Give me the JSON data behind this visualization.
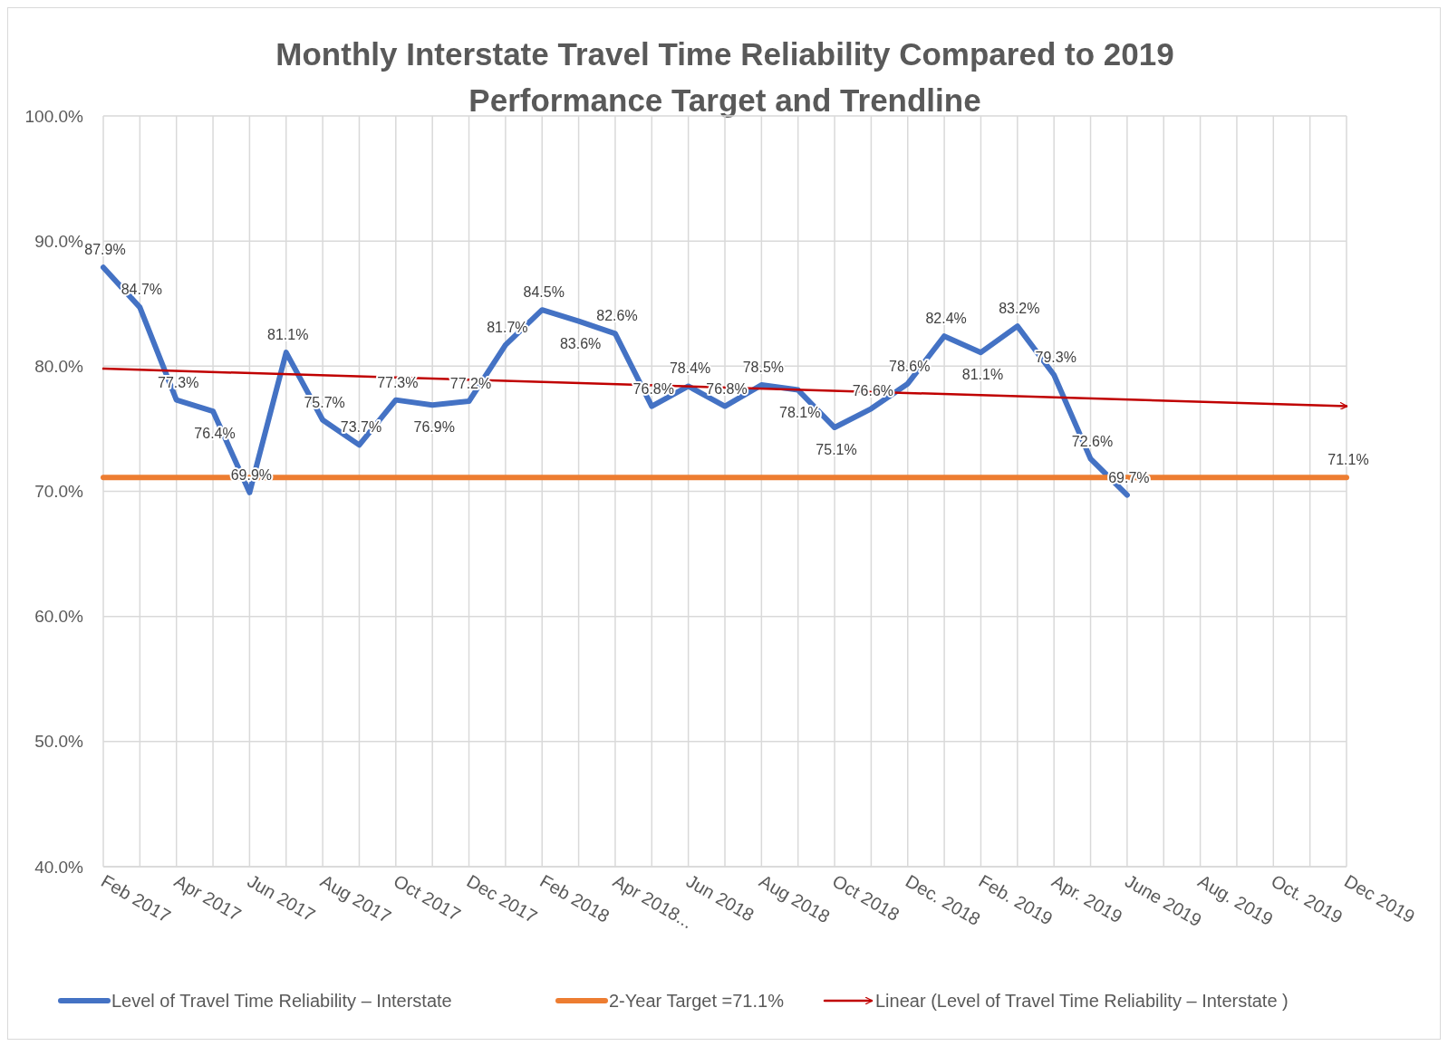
{
  "chart_data": {
    "type": "line",
    "title": "Monthly Interstate Travel Time Reliability Compared to 2019 Performance Target and Trendline",
    "categories": [
      "Feb 2017",
      null,
      "Apr 2017",
      null,
      "Jun 2017",
      null,
      "Aug 2017",
      null,
      "Oct 2017",
      null,
      "Dec 2017",
      null,
      "Feb 2018",
      null,
      "Apr 2018...",
      null,
      "Jun 2018",
      null,
      "Aug 2018",
      null,
      "Oct 2018",
      null,
      "Dec. 2018",
      null,
      "Feb. 2019",
      null,
      "Apr. 2019",
      null,
      "June 2019",
      null,
      "Aug. 2019",
      null,
      "Oct. 2019",
      null,
      "Dec 2019"
    ],
    "ylim": [
      40,
      100
    ],
    "yticks": [
      {
        "value": 40,
        "label": "40.0%"
      },
      {
        "value": 50,
        "label": "50.0%"
      },
      {
        "value": 60,
        "label": "60.0%"
      },
      {
        "value": 70,
        "label": "70.0%"
      },
      {
        "value": 80,
        "label": "80.0%"
      },
      {
        "value": 90,
        "label": "90.0%"
      },
      {
        "value": 100,
        "label": "100.0%"
      }
    ],
    "grid": true,
    "legend": "bottom",
    "series": [
      {
        "name": "Level of Travel Time Reliability – Interstate",
        "color": "#4472c4",
        "values": [
          87.9,
          84.7,
          77.3,
          76.4,
          69.9,
          81.1,
          75.7,
          73.7,
          77.3,
          76.9,
          77.2,
          81.7,
          84.5,
          83.6,
          82.6,
          76.8,
          78.4,
          76.8,
          78.5,
          78.1,
          75.1,
          76.6,
          78.6,
          82.4,
          81.1,
          83.2,
          79.3,
          72.6,
          69.7,
          null,
          null,
          null,
          null,
          null,
          null
        ],
        "value_labels": [
          "87.9%",
          "84.7%",
          "77.3%",
          "76.4%",
          "69.9%",
          "81.1%",
          "75.7%",
          "73.7%",
          "77.3%",
          "76.9%",
          "77.2%",
          "81.7%",
          "84.5%",
          "83.6%",
          "82.6%",
          "76.8%",
          "78.4%",
          "76.8%",
          "78.5%",
          "78.1%",
          "75.1%",
          "76.6%",
          "78.6%",
          "82.4%",
          "81.1%",
          "83.2%",
          "79.3%",
          "72.6%",
          "69.7%",
          null,
          null,
          null,
          null,
          null,
          null
        ]
      },
      {
        "name": "2-Year Target =71.1%",
        "color": "#ed7d31",
        "values": [
          71.1,
          71.1,
          71.1,
          71.1,
          71.1,
          71.1,
          71.1,
          71.1,
          71.1,
          71.1,
          71.1,
          71.1,
          71.1,
          71.1,
          71.1,
          71.1,
          71.1,
          71.1,
          71.1,
          71.1,
          71.1,
          71.1,
          71.1,
          71.1,
          71.1,
          71.1,
          71.1,
          71.1,
          71.1,
          71.1,
          71.1,
          71.1,
          71.1,
          71.1,
          71.1
        ],
        "value_labels": [
          null,
          null,
          null,
          null,
          null,
          null,
          null,
          null,
          null,
          null,
          null,
          null,
          null,
          null,
          null,
          null,
          null,
          null,
          null,
          null,
          null,
          null,
          null,
          null,
          null,
          null,
          null,
          null,
          null,
          null,
          null,
          null,
          null,
          null,
          "71.1%"
        ]
      },
      {
        "name": "Linear (Level of Travel Time Reliability – Interstate )",
        "color": "#c00000",
        "x": [
          "Feb 2017",
          "Dec 2019"
        ],
        "values": [
          79.8,
          76.8
        ]
      }
    ]
  }
}
